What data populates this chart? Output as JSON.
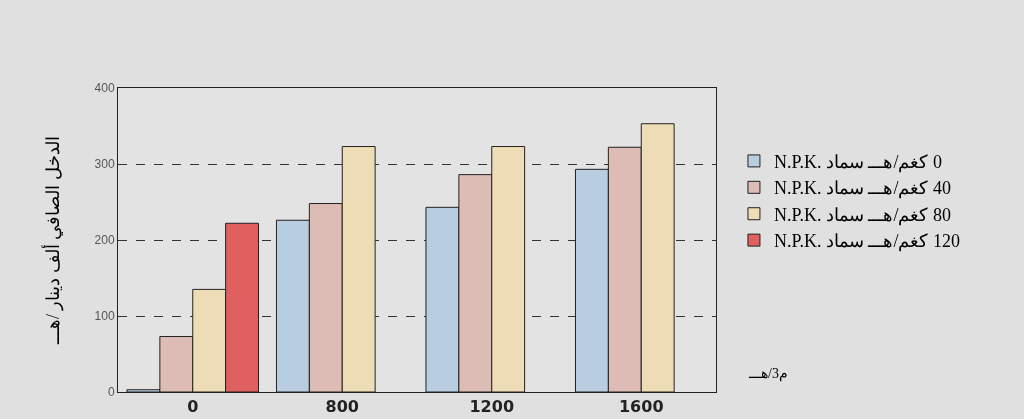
{
  "chart_data": {
    "type": "bar",
    "xlabel": "م3/هـــ",
    "ylabel": "الدخل الصافي ألف دينار /هـــ",
    "categories": [
      "0",
      "800",
      "1200",
      "1600"
    ],
    "series": [
      {
        "name": "0 كغم/هـــ سماد .N.P.K",
        "color": "#b9cde0",
        "values": [
          3,
          226,
          243,
          293
        ]
      },
      {
        "name": "40 كغم/هـــ سماد .N.P.K",
        "color": "#dcbcb4",
        "values": [
          73,
          248,
          286,
          322
        ]
      },
      {
        "name": "80 كغم/هـــ سماد .N.P.K",
        "color": "#eedcb6",
        "values": [
          135,
          323,
          323,
          353
        ]
      },
      {
        "name": "120 كغم/هـــ سماد .N.P.K",
        "color": "#e06060",
        "values": [
          222,
          null,
          null,
          null
        ]
      }
    ],
    "ylim": [
      0,
      400
    ],
    "yticks": [
      0,
      100,
      200,
      300,
      400
    ],
    "grid": "y",
    "legend": "right"
  }
}
